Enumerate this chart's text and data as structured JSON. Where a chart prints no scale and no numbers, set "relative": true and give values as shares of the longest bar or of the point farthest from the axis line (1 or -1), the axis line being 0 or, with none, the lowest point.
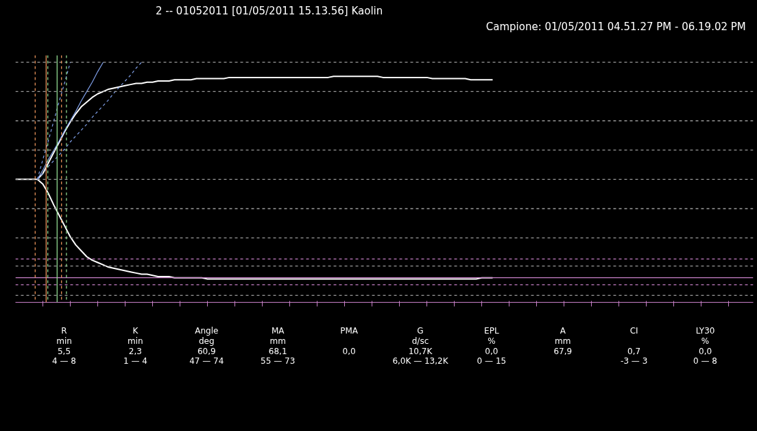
{
  "chart_data": {
    "type": "line",
    "relative": true,
    "title": "2 -- 01052011 [01/05/2011 15.13.56]      Kaolin",
    "subtitle": "Campione: 01/05/2011 04.51.27 PM - 06.19.02 PM",
    "categories": [
      null,
      null,
      null,
      null,
      null,
      null,
      null,
      null,
      null,
      null,
      null,
      null,
      null,
      null,
      null,
      null,
      null,
      null,
      null,
      null,
      null,
      null,
      null,
      null,
      null,
      null,
      null,
      null,
      null,
      null,
      null,
      null,
      null,
      null,
      null,
      null,
      null,
      null,
      null,
      null,
      null,
      null,
      null,
      null,
      null,
      null,
      null,
      null,
      null,
      null,
      null,
      null,
      null,
      null,
      null,
      null,
      null,
      null,
      null,
      null,
      null,
      null,
      null,
      null,
      null,
      null,
      null,
      null,
      null,
      null,
      null,
      null,
      null,
      null,
      null,
      null,
      null,
      null,
      null,
      null,
      null,
      null,
      null,
      null,
      null,
      null,
      null,
      null,
      null,
      null,
      null,
      null,
      null,
      null,
      null,
      null,
      null,
      null,
      null,
      null,
      null,
      null,
      null,
      null,
      null,
      null,
      null,
      null,
      null,
      null,
      null,
      null,
      null,
      null,
      null,
      null,
      null,
      null,
      null,
      null,
      null,
      null,
      null,
      null,
      null,
      null,
      null,
      null,
      null,
      null,
      null,
      null,
      null,
      null,
      null
    ],
    "marker": "none",
    "line_style": "solid",
    "series": [
      {
        "color": "#ffffff",
        "values": [
          0,
          0,
          0,
          0,
          0,
          0.05,
          0.14,
          0.23,
          0.32,
          0.41,
          0.49,
          0.56,
          0.62,
          0.66,
          0.7,
          0.73,
          0.75,
          0.77,
          0.78,
          0.79,
          0.8,
          0.81,
          0.82,
          0.82,
          0.83,
          0.83,
          0.84,
          0.84,
          0.84,
          0.85,
          0.85,
          0.85,
          0.85,
          0.86,
          0.86,
          0.86,
          0.86,
          0.86,
          0.86,
          0.87,
          0.87,
          0.87,
          0.87,
          0.87,
          0.87,
          0.87,
          0.87,
          0.87,
          0.87,
          0.87,
          0.87,
          0.87,
          0.87,
          0.87,
          0.87,
          0.87,
          0.87,
          0.87,
          0.88,
          0.88,
          0.88,
          0.88,
          0.88,
          0.88,
          0.88,
          0.88,
          0.88,
          0.87,
          0.87,
          0.87,
          0.87,
          0.87,
          0.87,
          0.87,
          0.87,
          0.87,
          0.86,
          0.86,
          0.86,
          0.86,
          0.86,
          0.86,
          0.86,
          0.85,
          0.85,
          0.85,
          0.85,
          0.85,
          null,
          null,
          null,
          null,
          null,
          null,
          null,
          null,
          null,
          null,
          null,
          null,
          null,
          null,
          null,
          null,
          null,
          null,
          null,
          null,
          null,
          null,
          null,
          null,
          null,
          null,
          null,
          null,
          null,
          null,
          null,
          null,
          null,
          null,
          null,
          null,
          null,
          null,
          null,
          null,
          null,
          null,
          null,
          null,
          null,
          null,
          null
        ]
      },
      {
        "color": "#ffffff",
        "values": [
          null,
          null,
          null,
          null,
          0,
          -0.04,
          -0.12,
          -0.22,
          -0.31,
          -0.4,
          -0.49,
          -0.56,
          -0.61,
          -0.66,
          -0.69,
          -0.71,
          -0.73,
          -0.75,
          -0.76,
          -0.77,
          -0.78,
          -0.79,
          -0.8,
          -0.81,
          -0.81,
          -0.82,
          -0.83,
          -0.83,
          -0.83,
          -0.84,
          -0.84,
          -0.84,
          -0.84,
          -0.84,
          -0.84,
          -0.85,
          -0.85,
          -0.85,
          -0.85,
          -0.85,
          -0.85,
          -0.85,
          -0.85,
          -0.85,
          -0.85,
          -0.85,
          -0.85,
          -0.85,
          -0.85,
          -0.85,
          -0.85,
          -0.85,
          -0.85,
          -0.85,
          -0.85,
          -0.85,
          -0.85,
          -0.85,
          -0.85,
          -0.85,
          -0.85,
          -0.85,
          -0.85,
          -0.85,
          -0.85,
          -0.85,
          -0.85,
          -0.85,
          -0.85,
          -0.85,
          -0.85,
          -0.85,
          -0.85,
          -0.85,
          -0.85,
          -0.85,
          -0.85,
          -0.85,
          -0.85,
          -0.85,
          -0.85,
          -0.85,
          -0.85,
          -0.85,
          -0.85,
          -0.84,
          -0.84,
          -0.84,
          null,
          null,
          null,
          null,
          null,
          null,
          null,
          null,
          null,
          null,
          null,
          null,
          null,
          null,
          null,
          null,
          null,
          null,
          null,
          null,
          null,
          null,
          null,
          null,
          null,
          null,
          null,
          null,
          null,
          null,
          null,
          null,
          null,
          null,
          null,
          null,
          null,
          null,
          null,
          null,
          null,
          null,
          null,
          null,
          null,
          null,
          null
        ]
      },
      {
        "color": "#7f9fe8",
        "line_style": "solid",
        "values": [
          null,
          null,
          null,
          null,
          0,
          0.08,
          0.17,
          0.25,
          0.33,
          0.42,
          0.5,
          0.58,
          0.67,
          0.75,
          0.83,
          0.92,
          1,
          null,
          null,
          null,
          null,
          null,
          null,
          null,
          null,
          null,
          null,
          null,
          null,
          null,
          null,
          null,
          null,
          null,
          null,
          null,
          null,
          null,
          null,
          null,
          null,
          null,
          null,
          null,
          null,
          null,
          null,
          null,
          null,
          null,
          null,
          null,
          null,
          null,
          null,
          null,
          null,
          null,
          null,
          null,
          null,
          null,
          null,
          null,
          null,
          null,
          null,
          null,
          null,
          null,
          null,
          null,
          null,
          null,
          null,
          null,
          null,
          null,
          null,
          null,
          null,
          null,
          null,
          null,
          null,
          null,
          null,
          null,
          null,
          null,
          null,
          null,
          null,
          null,
          null,
          null,
          null,
          null,
          null,
          null,
          null,
          null,
          null,
          null,
          null,
          null,
          null,
          null,
          null,
          null,
          null,
          null,
          null,
          null,
          null,
          null,
          null,
          null,
          null,
          null,
          null,
          null,
          null,
          null,
          null,
          null,
          null,
          null,
          null,
          null,
          null,
          null,
          null,
          null,
          null
        ]
      },
      {
        "color": "#7f9fe8",
        "line_style": "dashed",
        "values": [
          null,
          null,
          null,
          null,
          0,
          0.17,
          0.33,
          0.5,
          0.67,
          0.83,
          1,
          null,
          null,
          null,
          null,
          null,
          null,
          null,
          null,
          null,
          null,
          null,
          null,
          null,
          null,
          null,
          null,
          null,
          null,
          null,
          null,
          null,
          null,
          null,
          null,
          null,
          null,
          null,
          null,
          null,
          null,
          null,
          null,
          null,
          null,
          null,
          null,
          null,
          null,
          null,
          null,
          null,
          null,
          null,
          null,
          null,
          null,
          null,
          null,
          null,
          null,
          null,
          null,
          null,
          null,
          null,
          null,
          null,
          null,
          null,
          null,
          null,
          null,
          null,
          null,
          null,
          null,
          null,
          null,
          null,
          null,
          null,
          null,
          null,
          null,
          null,
          null,
          null,
          null,
          null,
          null,
          null,
          null,
          null,
          null,
          null,
          null,
          null,
          null,
          null,
          null,
          null,
          null,
          null,
          null,
          null,
          null,
          null,
          null,
          null,
          null,
          null,
          null,
          null,
          null,
          null,
          null,
          null,
          null,
          null,
          null,
          null,
          null,
          null,
          null,
          null,
          null,
          null,
          null,
          null,
          null,
          null,
          null,
          null,
          null
        ]
      },
      {
        "color": "#7f9fe8",
        "line_style": "dashed",
        "values": [
          null,
          null,
          null,
          null,
          0,
          0.05,
          0.11,
          0.16,
          0.21,
          0.26,
          0.32,
          0.37,
          0.42,
          0.47,
          0.53,
          0.58,
          0.63,
          0.68,
          0.74,
          0.79,
          0.84,
          0.89,
          0.95,
          1,
          null,
          null,
          null,
          null,
          null,
          null,
          null,
          null,
          null,
          null,
          null,
          null,
          null,
          null,
          null,
          null,
          null,
          null,
          null,
          null,
          null,
          null,
          null,
          null,
          null,
          null,
          null,
          null,
          null,
          null,
          null,
          null,
          null,
          null,
          null,
          null,
          null,
          null,
          null,
          null,
          null,
          null,
          null,
          null,
          null,
          null,
          null,
          null,
          null,
          null,
          null,
          null,
          null,
          null,
          null,
          null,
          null,
          null,
          null,
          null,
          null,
          null,
          null,
          null,
          null,
          null,
          null,
          null,
          null,
          null,
          null,
          null,
          null,
          null,
          null,
          null,
          null,
          null,
          null,
          null,
          null,
          null,
          null,
          null,
          null,
          null,
          null,
          null,
          null,
          null,
          null,
          null,
          null,
          null,
          null,
          null,
          null,
          null,
          null,
          null,
          null,
          null,
          null,
          null,
          null,
          null,
          null,
          null,
          null,
          null,
          null
        ]
      }
    ],
    "ref_lines": [
      {
        "axis": "y",
        "value": 1,
        "color": "#9a9a9a",
        "line_style": "dashed"
      },
      {
        "axis": "y",
        "value": 0.75,
        "color": "#9a9a9a",
        "line_style": "dashed"
      },
      {
        "axis": "y",
        "value": 0.5,
        "color": "#9a9a9a",
        "line_style": "dashed"
      },
      {
        "axis": "y",
        "value": 0.25,
        "color": "#9a9a9a",
        "line_style": "dashed"
      },
      {
        "axis": "y",
        "value": 0,
        "color": "#9a9a9a",
        "line_style": "dashed"
      },
      {
        "axis": "y",
        "value": -0.25,
        "color": "#9a9a9a",
        "line_style": "dashed"
      },
      {
        "axis": "y",
        "value": -0.5,
        "color": "#9a9a9a",
        "line_style": "dashed"
      },
      {
        "axis": "y",
        "value": -0.74,
        "color": "#9a9a9a",
        "line_style": "dashed"
      },
      {
        "axis": "y",
        "value": -0.99,
        "color": "#9a9a9a",
        "line_style": "dashed"
      },
      {
        "axis": "y",
        "value": -0.68,
        "color": "#c880c8",
        "line_style": "dashed"
      },
      {
        "axis": "y",
        "value": -0.84,
        "color": "#c880c8",
        "line_style": "solid"
      },
      {
        "axis": "y",
        "value": -0.9,
        "color": "#c880c8",
        "line_style": "dashed"
      }
    ],
    "annotations": [
      "R\nmin\n5,5\n4 — 8",
      "K\nmin\n2,3\n1 — 4",
      "Angle\ndeg\n60,9\n47 — 74",
      "MA\nmm\n68,1\n55 — 73",
      "PMA\n\n0,0\n",
      "G\nd/sc\n10,7K\n6,0K — 13,2K",
      "EPL\n%\n0,0\n0 — 15",
      "A\nmm\n67,9\n",
      "CI\n\n0,7\n-3 — 3",
      "LY30\n%\n0,0\n0 — 8"
    ]
  }
}
